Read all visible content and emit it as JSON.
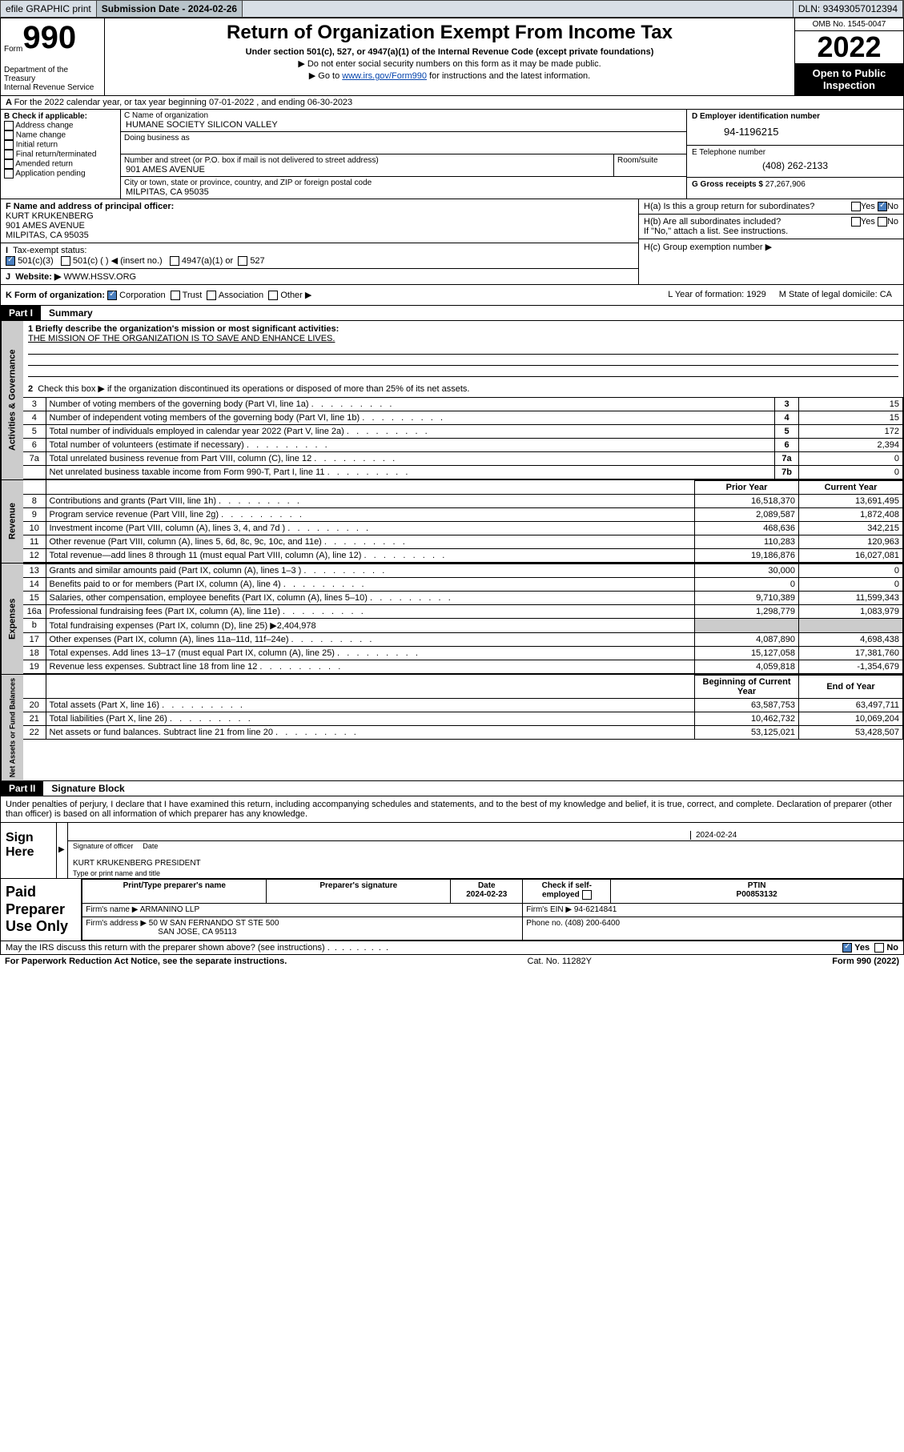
{
  "topbar": {
    "efile": "efile GRAPHIC print",
    "sub_label": "Submission Date - 2024-02-26",
    "dln": "DLN: 93493057012394"
  },
  "header": {
    "form_word": "Form",
    "form_num": "990",
    "dept": "Department of the Treasury",
    "irs": "Internal Revenue Service",
    "title": "Return of Organization Exempt From Income Tax",
    "sub1": "Under section 501(c), 527, or 4947(a)(1) of the Internal Revenue Code (except private foundations)",
    "sub2": "Do not enter social security numbers on this form as it may be made public.",
    "sub3_pre": "Go to ",
    "sub3_link": "www.irs.gov/Form990",
    "sub3_post": " for instructions and the latest information.",
    "omb": "OMB No. 1545-0047",
    "year": "2022",
    "open": "Open to Public Inspection"
  },
  "line_a": "For the 2022 calendar year, or tax year beginning 07-01-2022   , and ending 06-30-2023",
  "col_b": {
    "label": "B Check if applicable:",
    "opts": [
      "Address change",
      "Name change",
      "Initial return",
      "Final return/terminated",
      "Amended return",
      "Application pending"
    ]
  },
  "col_c": {
    "name_lab": "C Name of organization",
    "name": "HUMANE SOCIETY SILICON VALLEY",
    "dba_lab": "Doing business as",
    "addr_lab": "Number and street (or P.O. box if mail is not delivered to street address)",
    "room_lab": "Room/suite",
    "addr": "901 AMES AVENUE",
    "city_lab": "City or town, state or province, country, and ZIP or foreign postal code",
    "city": "MILPITAS, CA  95035"
  },
  "col_d": {
    "d_lab": "D Employer identification number",
    "ein": "94-1196215",
    "e_lab": "E Telephone number",
    "phone": "(408) 262-2133",
    "g_lab": "G Gross receipts $",
    "gross": "27,267,906"
  },
  "f_block": {
    "f_lab": "F Name and address of principal officer:",
    "f_name": "KURT KRUKENBERG",
    "f_addr1": "901 AMES AVENUE",
    "f_addr2": "MILPITAS, CA  95035",
    "i_lab": "Tax-exempt status:",
    "i_501c3": "501(c)(3)",
    "i_501c": "501(c) (   ) ◀ (insert no.)",
    "i_4947": "4947(a)(1) or",
    "i_527": "527",
    "j_lab": "Website: ▶",
    "j_val": "WWW.HSSV.ORG",
    "k_lab": "K Form of organization:",
    "k_corp": "Corporation",
    "k_trust": "Trust",
    "k_assoc": "Association",
    "k_other": "Other ▶"
  },
  "h_block": {
    "ha": "H(a)  Is this a group return for subordinates?",
    "hb": "H(b)  Are all subordinates included?",
    "hb_note": "If \"No,\" attach a list. See instructions.",
    "hc": "H(c)  Group exemption number ▶",
    "yes": "Yes",
    "no": "No"
  },
  "l_block": {
    "l_lab": "L Year of formation: 1929",
    "m_lab": "M State of legal domicile: CA"
  },
  "part1": {
    "hdr": "Part I",
    "title": "Summary"
  },
  "governance": {
    "tab": "Activities & Governance",
    "q1_lab": "1  Briefly describe the organization's mission or most significant activities:",
    "q1_val": "THE MISSION OF THE ORGANIZATION IS TO SAVE AND ENHANCE LIVES.",
    "q2": "Check this box ▶      if the organization discontinued its operations or disposed of more than 25% of its net assets.",
    "rows": [
      {
        "n": "3",
        "d": "Number of voting members of the governing body (Part VI, line 1a)",
        "b": "3",
        "v": "15"
      },
      {
        "n": "4",
        "d": "Number of independent voting members of the governing body (Part VI, line 1b)",
        "b": "4",
        "v": "15"
      },
      {
        "n": "5",
        "d": "Total number of individuals employed in calendar year 2022 (Part V, line 2a)",
        "b": "5",
        "v": "172"
      },
      {
        "n": "6",
        "d": "Total number of volunteers (estimate if necessary)",
        "b": "6",
        "v": "2,394"
      },
      {
        "n": "7a",
        "d": "Total unrelated business revenue from Part VIII, column (C), line 12",
        "b": "7a",
        "v": "0"
      },
      {
        "n": "",
        "d": "Net unrelated business taxable income from Form 990-T, Part I, line 11",
        "b": "7b",
        "v": "0"
      }
    ]
  },
  "revenue": {
    "tab": "Revenue",
    "col_prior": "Prior Year",
    "col_current": "Current Year",
    "rows": [
      {
        "n": "8",
        "d": "Contributions and grants (Part VIII, line 1h)",
        "p": "16,518,370",
        "c": "13,691,495"
      },
      {
        "n": "9",
        "d": "Program service revenue (Part VIII, line 2g)",
        "p": "2,089,587",
        "c": "1,872,408"
      },
      {
        "n": "10",
        "d": "Investment income (Part VIII, column (A), lines 3, 4, and 7d )",
        "p": "468,636",
        "c": "342,215"
      },
      {
        "n": "11",
        "d": "Other revenue (Part VIII, column (A), lines 5, 6d, 8c, 9c, 10c, and 11e)",
        "p": "110,283",
        "c": "120,963"
      },
      {
        "n": "12",
        "d": "Total revenue—add lines 8 through 11 (must equal Part VIII, column (A), line 12)",
        "p": "19,186,876",
        "c": "16,027,081"
      }
    ]
  },
  "expenses": {
    "tab": "Expenses",
    "rows": [
      {
        "n": "13",
        "d": "Grants and similar amounts paid (Part IX, column (A), lines 1–3 )",
        "p": "30,000",
        "c": "0"
      },
      {
        "n": "14",
        "d": "Benefits paid to or for members (Part IX, column (A), line 4)",
        "p": "0",
        "c": "0"
      },
      {
        "n": "15",
        "d": "Salaries, other compensation, employee benefits (Part IX, column (A), lines 5–10)",
        "p": "9,710,389",
        "c": "11,599,343"
      },
      {
        "n": "16a",
        "d": "Professional fundraising fees (Part IX, column (A), line 11e)",
        "p": "1,298,779",
        "c": "1,083,979"
      },
      {
        "n": "b",
        "d": "Total fundraising expenses (Part IX, column (D), line 25) ▶2,404,978",
        "p": "",
        "c": "",
        "grey": true
      },
      {
        "n": "17",
        "d": "Other expenses (Part IX, column (A), lines 11a–11d, 11f–24e)",
        "p": "4,087,890",
        "c": "4,698,438"
      },
      {
        "n": "18",
        "d": "Total expenses. Add lines 13–17 (must equal Part IX, column (A), line 25)",
        "p": "15,127,058",
        "c": "17,381,760"
      },
      {
        "n": "19",
        "d": "Revenue less expenses. Subtract line 18 from line 12",
        "p": "4,059,818",
        "c": "-1,354,679"
      }
    ]
  },
  "netassets": {
    "tab": "Net Assets or Fund Balances",
    "col_begin": "Beginning of Current Year",
    "col_end": "End of Year",
    "rows": [
      {
        "n": "20",
        "d": "Total assets (Part X, line 16)",
        "p": "63,587,753",
        "c": "63,497,711"
      },
      {
        "n": "21",
        "d": "Total liabilities (Part X, line 26)",
        "p": "10,462,732",
        "c": "10,069,204"
      },
      {
        "n": "22",
        "d": "Net assets or fund balances. Subtract line 21 from line 20",
        "p": "53,125,021",
        "c": "53,428,507"
      }
    ]
  },
  "part2": {
    "hdr": "Part II",
    "title": "Signature Block"
  },
  "sig_intro": "Under penalties of perjury, I declare that I have examined this return, including accompanying schedules and statements, and to the best of my knowledge and belief, it is true, correct, and complete. Declaration of preparer (other than officer) is based on all information of which preparer has any knowledge.",
  "sig": {
    "here": "Sign Here",
    "sig_of_officer": "Signature of officer",
    "date_lab": "Date",
    "date": "2024-02-24",
    "name_title": "KURT KRUKENBERG  PRESIDENT",
    "name_title_lab": "Type or print name and title"
  },
  "prep": {
    "left": "Paid Preparer Use Only",
    "h_print": "Print/Type preparer's name",
    "h_psig": "Preparer's signature",
    "h_date": "Date",
    "date": "2024-02-23",
    "h_check": "Check      if self-employed",
    "h_ptin": "PTIN",
    "ptin": "P00853132",
    "firm_lab": "Firm's name     ▶",
    "firm": "ARMANINO LLP",
    "ein_lab": "Firm's EIN ▶",
    "ein": "94-6214841",
    "addr_lab": "Firm's address ▶",
    "addr1": "50 W SAN FERNANDO ST STE 500",
    "addr2": "SAN JOSE, CA  95113",
    "phone_lab": "Phone no.",
    "phone": "(408) 200-6400"
  },
  "footer": {
    "discuss": "May the IRS discuss this return with the preparer shown above? (see instructions)",
    "yes": "Yes",
    "no": "No",
    "pra": "For Paperwork Reduction Act Notice, see the separate instructions.",
    "cat": "Cat. No. 11282Y",
    "form": "Form 990 (2022)"
  }
}
